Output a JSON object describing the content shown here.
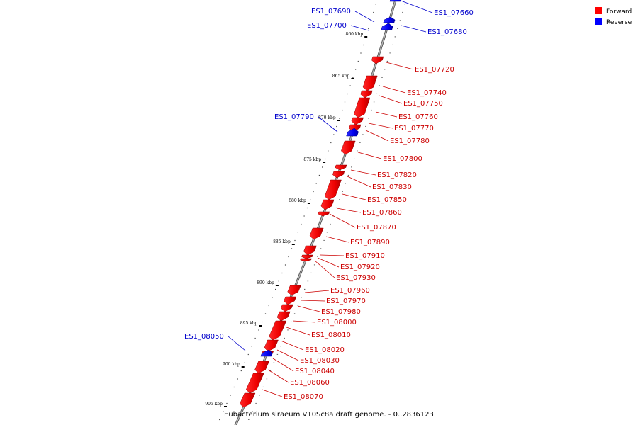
{
  "legend": {
    "forward": {
      "label": "Forward",
      "color": "#ff0000"
    },
    "reverse": {
      "label": "Reverse",
      "color": "#0000ff"
    }
  },
  "caption": "Eubacterium siraeum V10Sc8a draft genome. - 0..2836123",
  "ticks": [
    "860 kbp",
    "865 kbp",
    "870 kbp",
    "875 kbp",
    "880 kbp",
    "885 kbp",
    "890 kbp",
    "895 kbp",
    "900 kbp",
    "905 kbp"
  ],
  "genes": [
    {
      "id": "ES1_07660",
      "strand": "reverse"
    },
    {
      "id": "ES1_07680",
      "strand": "reverse"
    },
    {
      "id": "ES1_07690",
      "strand": "reverse"
    },
    {
      "id": "ES1_07700",
      "strand": "reverse"
    },
    {
      "id": "ES1_07720",
      "strand": "forward"
    },
    {
      "id": "ES1_07740",
      "strand": "forward"
    },
    {
      "id": "ES1_07750",
      "strand": "forward"
    },
    {
      "id": "ES1_07760",
      "strand": "forward"
    },
    {
      "id": "ES1_07770",
      "strand": "forward"
    },
    {
      "id": "ES1_07780",
      "strand": "forward"
    },
    {
      "id": "ES1_07790",
      "strand": "reverse"
    },
    {
      "id": "ES1_07800",
      "strand": "forward"
    },
    {
      "id": "ES1_07820",
      "strand": "forward"
    },
    {
      "id": "ES1_07830",
      "strand": "forward"
    },
    {
      "id": "ES1_07850",
      "strand": "forward"
    },
    {
      "id": "ES1_07860",
      "strand": "forward"
    },
    {
      "id": "ES1_07870",
      "strand": "forward"
    },
    {
      "id": "ES1_07890",
      "strand": "forward"
    },
    {
      "id": "ES1_07910",
      "strand": "forward"
    },
    {
      "id": "ES1_07920",
      "strand": "forward"
    },
    {
      "id": "ES1_07930",
      "strand": "forward"
    },
    {
      "id": "ES1_07960",
      "strand": "forward"
    },
    {
      "id": "ES1_07970",
      "strand": "forward"
    },
    {
      "id": "ES1_07980",
      "strand": "forward"
    },
    {
      "id": "ES1_08000",
      "strand": "forward"
    },
    {
      "id": "ES1_08010",
      "strand": "forward"
    },
    {
      "id": "ES1_08020",
      "strand": "forward"
    },
    {
      "id": "ES1_08030",
      "strand": "forward"
    },
    {
      "id": "ES1_08040",
      "strand": "forward"
    },
    {
      "id": "ES1_08050",
      "strand": "reverse"
    },
    {
      "id": "ES1_08060",
      "strand": "forward"
    },
    {
      "id": "ES1_08070",
      "strand": "forward"
    }
  ]
}
